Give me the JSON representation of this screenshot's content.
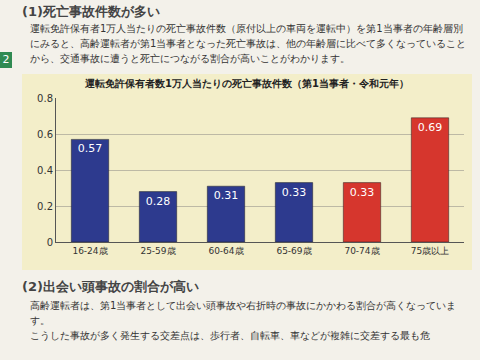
{
  "document": {
    "heading1": "(1)死亡事故件数が多い",
    "paragraph1": "運転免許保有者1万人当たりの死亡事故件数（原付以上の車両を運転中）を第1当事者の年齢層別にみると、高齢運転者が第1当事者となった死亡事故は、他の年齢層に比べて多くなっていることから、交通事故に遭うと死亡につながる割合が高いことがわかります。",
    "side_tab": "2",
    "heading2": "(2)出会い頭事故の割合が高い",
    "paragraph2": [
      "高齢運転者は、第1当事者として出会い頭事故や右折時の事故にかかわる割合が高くなっています。",
      "こうした事故が多く発生する交差点は、歩行者、自転車、車などが複雑に交差する最も危"
    ]
  },
  "chart_data": {
    "type": "bar",
    "title": "運転免許保有者数1万人当たりの死亡事故件数（第1当事者・令和元年）",
    "categories": [
      "16-24歳",
      "25-59歳",
      "60-64歳",
      "65-69歳",
      "70-74歳",
      "75歳以上"
    ],
    "values": [
      0.57,
      0.28,
      0.31,
      0.33,
      0.33,
      0.69
    ],
    "colors": [
      "#2d3a8e",
      "#2d3a8e",
      "#2d3a8e",
      "#2d3a8e",
      "#d6362d",
      "#d6362d"
    ],
    "ylim": [
      0,
      0.8
    ],
    "yticks": [
      0,
      0.2,
      0.4,
      0.6,
      0.8
    ],
    "grid": true,
    "data_labels": true
  }
}
